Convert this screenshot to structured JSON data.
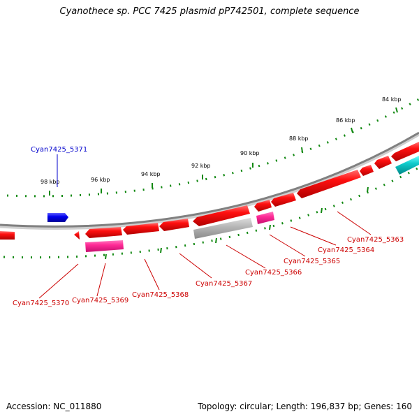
{
  "title": "Cyanothece sp. PCC 7425 plasmid pP742501, complete sequence",
  "footer": {
    "accession": "Accession: NC_011880",
    "summary": "Topology: circular; Length: 196,837 bp; Genes: 160"
  },
  "scale_labels": [
    "84 kbp",
    "86 kbp",
    "88 kbp",
    "90 kbp",
    "92 kbp",
    "94 kbp",
    "96 kbp",
    "98 kbp"
  ],
  "gene_labels": [
    {
      "name": "Cyan7425_5371",
      "color": "#0000cc"
    },
    {
      "name": "Cyan7425_5370",
      "color": "#cc0000"
    },
    {
      "name": "Cyan7425_5369",
      "color": "#cc0000"
    },
    {
      "name": "Cyan7425_5368",
      "color": "#cc0000"
    },
    {
      "name": "Cyan7425_5367",
      "color": "#cc0000"
    },
    {
      "name": "Cyan7425_5366",
      "color": "#cc0000"
    },
    {
      "name": "Cyan7425_5365",
      "color": "#cc0000"
    },
    {
      "name": "Cyan7425_5364",
      "color": "#cc0000"
    },
    {
      "name": "Cyan7425_5363",
      "color": "#cc0000"
    }
  ],
  "colors": {
    "cds": "#ee0000",
    "cds_blue": "#0000ee",
    "cds_cyan": "#00bbbb",
    "pink": "#ff1493",
    "grey": "#aaaaaa",
    "ticks": "#118811",
    "backbone": "#888888"
  }
}
